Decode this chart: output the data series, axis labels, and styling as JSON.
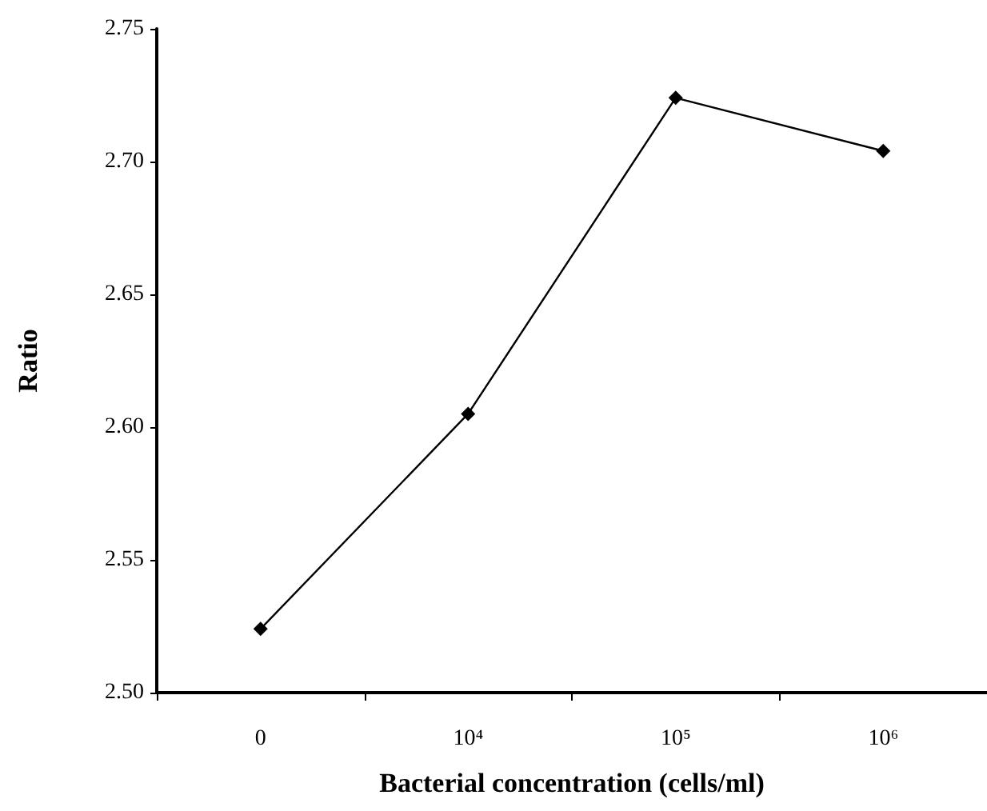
{
  "chart_data": {
    "type": "line",
    "xlabel": "Bacterial concentration (cells/ml)",
    "ylabel": "Ratio",
    "categories": [
      "0",
      "10⁴",
      "10⁵",
      "10⁶"
    ],
    "series": [
      {
        "color": "#000000",
        "values": [
          2.524,
          2.605,
          2.724,
          2.704
        ]
      }
    ],
    "ylim": [
      2.5,
      2.75
    ],
    "yticks": [
      {
        "value": 2.5,
        "label": "2.50"
      },
      {
        "value": 2.55,
        "label": "2.55"
      },
      {
        "value": 2.6,
        "label": "2.60"
      },
      {
        "value": 2.65,
        "label": "2.65"
      },
      {
        "value": 2.7,
        "label": "2.70"
      },
      {
        "value": 2.75,
        "label": "2.75"
      }
    ],
    "marker": "diamond",
    "line_style": "solid",
    "grid": false
  }
}
